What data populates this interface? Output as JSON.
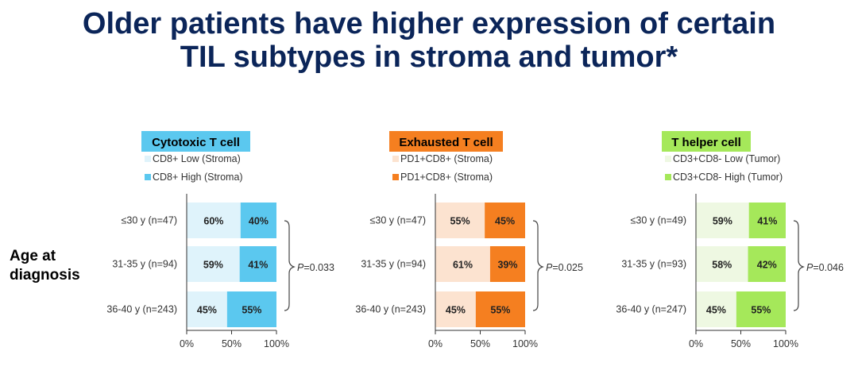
{
  "title_lines": [
    "Older patients have higher expression of certain",
    "TIL subtypes in stroma and tumor*"
  ],
  "y_group_label": [
    "Age at",
    "diagnosis"
  ],
  "chart_data": [
    {
      "type": "bar",
      "stacked": true,
      "orientation": "horizontal",
      "title": "Cytotoxic T cell",
      "title_color": "#5bc8ef",
      "categories": [
        "≤30 y (n=47)",
        "31-35 y (n=94)",
        "36-40 y (n=243)"
      ],
      "series": [
        {
          "name": "CD8+ Low (Stroma)",
          "color": "#dff3fb",
          "values": [
            60,
            59,
            45
          ]
        },
        {
          "name": "CD8+ High (Stroma)",
          "color": "#5bc8ef",
          "values": [
            40,
            41,
            55
          ]
        }
      ],
      "xticks": [
        "0%",
        "50%",
        "100%"
      ],
      "xlim": [
        0,
        100
      ],
      "p_label": "P",
      "p_value": "=0.033"
    },
    {
      "type": "bar",
      "stacked": true,
      "orientation": "horizontal",
      "title": "Exhausted T cell",
      "title_color": "#f57f20",
      "categories": [
        "≤30 y (n=47)",
        "31-35 y (n=94)",
        "36-40 y (n=243)"
      ],
      "series": [
        {
          "name": "PD1+CD8+ (Stroma)",
          "color": "#fce3d0",
          "values": [
            55,
            61,
            45
          ]
        },
        {
          "name": "PD1+CD8+ (Stroma)",
          "color": "#f57f20",
          "values": [
            45,
            39,
            55
          ]
        }
      ],
      "xticks": [
        "0%",
        "50%",
        "100%"
      ],
      "xlim": [
        0,
        100
      ],
      "p_label": "P",
      "p_value": "=0.025"
    },
    {
      "type": "bar",
      "stacked": true,
      "orientation": "horizontal",
      "title": "T helper cell",
      "title_color": "#a5e85a",
      "categories": [
        "≤30 y (n=49)",
        "31-35 y (n=93)",
        "36-40 y (n=247)"
      ],
      "series": [
        {
          "name": "CD3+CD8- Low (Tumor)",
          "color": "#eef8e2",
          "values": [
            59,
            58,
            45
          ]
        },
        {
          "name": "CD3+CD8- High (Tumor)",
          "color": "#a5e85a",
          "values": [
            41,
            42,
            55
          ]
        }
      ],
      "xticks": [
        "0%",
        "50%",
        "100%"
      ],
      "xlim": [
        0,
        100
      ],
      "p_label": "P",
      "p_value": "=0.046"
    }
  ]
}
